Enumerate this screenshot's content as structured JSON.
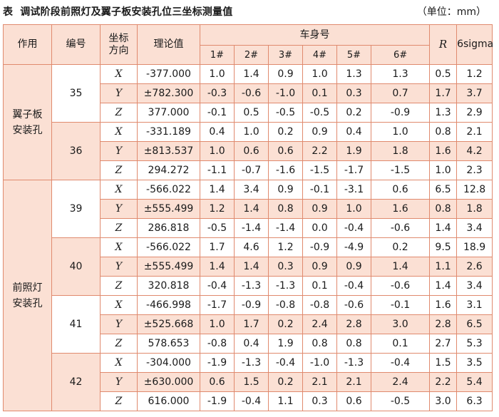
{
  "caption": {
    "label": "表",
    "title": "调试阶段前照灯及翼子板安装孔位三坐标测量值",
    "unit": "（单位：mm）"
  },
  "header": {
    "role": "作用",
    "code": "编号",
    "axis": "坐标方向",
    "theory": "理论值",
    "body_no": "车身号",
    "cars": [
      "1#",
      "2#",
      "3#",
      "4#",
      "5#",
      "6#"
    ],
    "r": "R",
    "sigma": "6sigma"
  },
  "groups": [
    {
      "role": "翼子板安装孔",
      "items": [
        {
          "code": "35",
          "rows": [
            {
              "axis": "X",
              "theory": "-377.000",
              "values": [
                "1.0",
                "1.4",
                "0.9",
                "1.0",
                "1.3",
                "1.3"
              ],
              "r": "0.5",
              "sigma": "1.2"
            },
            {
              "axis": "Y",
              "theory": "±782.300",
              "values": [
                "-0.3",
                "-0.6",
                "-1.0",
                "0.1",
                "0.3",
                "0.7"
              ],
              "r": "1.7",
              "sigma": "3.7"
            },
            {
              "axis": "Z",
              "theory": "377.000",
              "values": [
                "-0.1",
                "0.5",
                "-0.5",
                "-0.5",
                "0.2",
                "-0.9"
              ],
              "r": "1.3",
              "sigma": "2.9"
            }
          ]
        },
        {
          "code": "36",
          "rows": [
            {
              "axis": "X",
              "theory": "-331.189",
              "values": [
                "0.4",
                "1.0",
                "0.2",
                "0.9",
                "0.4",
                "1.0"
              ],
              "r": "0.8",
              "sigma": "2.1"
            },
            {
              "axis": "Y",
              "theory": "±813.537",
              "values": [
                "1.0",
                "0.6",
                "0.6",
                "2.2",
                "1.9",
                "1.8"
              ],
              "r": "1.6",
              "sigma": "4.2"
            },
            {
              "axis": "Z",
              "theory": "294.272",
              "values": [
                "-1.1",
                "-0.7",
                "-1.6",
                "-1.5",
                "-1.7",
                "-1.5"
              ],
              "r": "1.0",
              "sigma": "2.3"
            }
          ]
        }
      ]
    },
    {
      "role": "前照灯安装孔",
      "items": [
        {
          "code": "39",
          "rows": [
            {
              "axis": "X",
              "theory": "-566.022",
              "values": [
                "1.4",
                "3.4",
                "0.9",
                "-0.1",
                "-3.1",
                "0.6"
              ],
              "r": "6.5",
              "sigma": "12.8"
            },
            {
              "axis": "Y",
              "theory": "±555.499",
              "values": [
                "1.2",
                "1.4",
                "0.8",
                "0.9",
                "1.0",
                "1.6"
              ],
              "r": "0.8",
              "sigma": "1.8"
            },
            {
              "axis": "Z",
              "theory": "286.818",
              "values": [
                "-0.5",
                "-1.4",
                "-1.4",
                "0.0",
                "-0.4",
                "-0.6"
              ],
              "r": "1.4",
              "sigma": "3.4"
            }
          ]
        },
        {
          "code": "40",
          "rows": [
            {
              "axis": "X",
              "theory": "-566.022",
              "values": [
                "1.7",
                "4.6",
                "1.2",
                "-0.9",
                "-4.9",
                "0.2"
              ],
              "r": "9.5",
              "sigma": "18.9"
            },
            {
              "axis": "Y",
              "theory": "±555.499",
              "values": [
                "1.4",
                "1.4",
                "0.3",
                "0.9",
                "0.9",
                "1.4"
              ],
              "r": "1.1",
              "sigma": "2.6"
            },
            {
              "axis": "Z",
              "theory": "320.818",
              "values": [
                "-0.4",
                "-1.3",
                "-1.3",
                "0.1",
                "-0.4",
                "-0.6"
              ],
              "r": "1.4",
              "sigma": "3.4"
            }
          ]
        },
        {
          "code": "41",
          "rows": [
            {
              "axis": "X",
              "theory": "-466.998",
              "values": [
                "-1.7",
                "-0.9",
                "-0.8",
                "-0.8",
                "-0.6",
                "-0.1"
              ],
              "r": "1.6",
              "sigma": "3.1"
            },
            {
              "axis": "Y",
              "theory": "±525.668",
              "values": [
                "1.0",
                "1.7",
                "0.2",
                "2.4",
                "2.8",
                "3.0"
              ],
              "r": "2.8",
              "sigma": "6.5"
            },
            {
              "axis": "Z",
              "theory": "578.653",
              "values": [
                "-0.8",
                "0.4",
                "1.9",
                "0.8",
                "0.8",
                "0.1"
              ],
              "r": "2.7",
              "sigma": "5.3"
            }
          ]
        },
        {
          "code": "42",
          "rows": [
            {
              "axis": "X",
              "theory": "-304.000",
              "values": [
                "-1.9",
                "-1.3",
                "-0.4",
                "-1.0",
                "-1.3",
                "-0.4"
              ],
              "r": "1.5",
              "sigma": "3.5"
            },
            {
              "axis": "Y",
              "theory": "±630.000",
              "values": [
                "0.6",
                "1.5",
                "0.2",
                "2.1",
                "2.1",
                "2.4"
              ],
              "r": "2.2",
              "sigma": "5.4"
            },
            {
              "axis": "Z",
              "theory": "616.000",
              "values": [
                "-1.9",
                "-0.4",
                "1.1",
                "0.3",
                "0.6",
                "-0.5"
              ],
              "r": "3.0",
              "sigma": "6.3"
            }
          ]
        }
      ]
    }
  ]
}
